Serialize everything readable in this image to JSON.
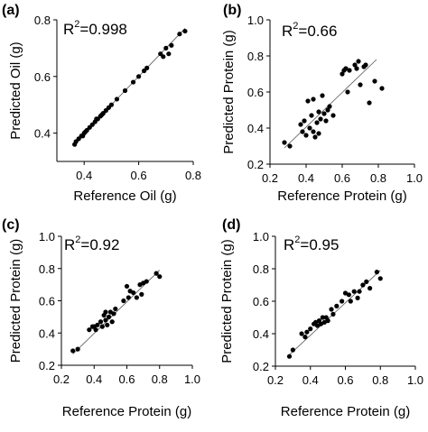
{
  "chart_data": [
    {
      "type": "scatter",
      "panel_label": "(a)",
      "annotation": {
        "base": "R",
        "sup": "2",
        "value": "=0.998"
      },
      "xlabel": "Reference Oil (g)",
      "ylabel": "Predicted Oil (g)",
      "xlim": [
        0.3,
        0.8
      ],
      "ylim": [
        0.3,
        0.8
      ],
      "xticks": [
        0.4,
        0.6,
        0.8
      ],
      "yticks": [
        0.4,
        0.6,
        0.8
      ],
      "xtick_labels": [
        "0.4",
        "0.6",
        "0.8"
      ],
      "ytick_labels": [
        "0.4",
        "0.6",
        "0.8"
      ],
      "fit_line": [
        [
          0.36,
          0.36
        ],
        [
          0.77,
          0.77
        ]
      ],
      "points": [
        [
          0.365,
          0.36
        ],
        [
          0.37,
          0.37
        ],
        [
          0.38,
          0.38
        ],
        [
          0.39,
          0.39
        ],
        [
          0.395,
          0.39
        ],
        [
          0.4,
          0.4
        ],
        [
          0.405,
          0.405
        ],
        [
          0.41,
          0.41
        ],
        [
          0.42,
          0.42
        ],
        [
          0.43,
          0.43
        ],
        [
          0.44,
          0.44
        ],
        [
          0.445,
          0.45
        ],
        [
          0.45,
          0.45
        ],
        [
          0.46,
          0.46
        ],
        [
          0.465,
          0.465
        ],
        [
          0.47,
          0.47
        ],
        [
          0.48,
          0.48
        ],
        [
          0.49,
          0.49
        ],
        [
          0.5,
          0.5
        ],
        [
          0.52,
          0.52
        ],
        [
          0.55,
          0.55
        ],
        [
          0.58,
          0.58
        ],
        [
          0.6,
          0.6
        ],
        [
          0.62,
          0.62
        ],
        [
          0.63,
          0.63
        ],
        [
          0.68,
          0.68
        ],
        [
          0.69,
          0.67
        ],
        [
          0.7,
          0.7
        ],
        [
          0.71,
          0.68
        ],
        [
          0.72,
          0.71
        ],
        [
          0.75,
          0.75
        ],
        [
          0.77,
          0.76
        ]
      ]
    },
    {
      "type": "scatter",
      "panel_label": "(b)",
      "annotation": {
        "base": "R",
        "sup": "2",
        "value": "=0.66"
      },
      "xlabel": "Reference Protein (g)",
      "ylabel": "Predicted Protein (g)",
      "xlim": [
        0.2,
        1.0
      ],
      "ylim": [
        0.2,
        1.0
      ],
      "xticks": [
        0.2,
        0.4,
        0.6,
        0.8,
        1.0
      ],
      "yticks": [
        0.2,
        0.4,
        0.6,
        0.8,
        1.0
      ],
      "xtick_labels": [
        "0.2",
        "0.4",
        "0.6",
        "0.8",
        "1.0"
      ],
      "ytick_labels": [
        "0.2",
        "0.4",
        "0.6",
        "0.8",
        "1.0"
      ],
      "fit_line": [
        [
          0.28,
          0.29
        ],
        [
          0.79,
          0.78
        ]
      ],
      "points": [
        [
          0.28,
          0.32
        ],
        [
          0.31,
          0.3
        ],
        [
          0.37,
          0.42
        ],
        [
          0.38,
          0.38
        ],
        [
          0.39,
          0.44
        ],
        [
          0.4,
          0.36
        ],
        [
          0.41,
          0.55
        ],
        [
          0.42,
          0.4
        ],
        [
          0.43,
          0.47
        ],
        [
          0.44,
          0.38
        ],
        [
          0.44,
          0.56
        ],
        [
          0.45,
          0.35
        ],
        [
          0.46,
          0.43
        ],
        [
          0.47,
          0.37
        ],
        [
          0.47,
          0.49
        ],
        [
          0.48,
          0.45
        ],
        [
          0.49,
          0.58
        ],
        [
          0.5,
          0.48
        ],
        [
          0.51,
          0.44
        ],
        [
          0.52,
          0.5
        ],
        [
          0.53,
          0.52
        ],
        [
          0.55,
          0.47
        ],
        [
          0.6,
          0.7
        ],
        [
          0.61,
          0.72
        ],
        [
          0.62,
          0.73
        ],
        [
          0.63,
          0.6
        ],
        [
          0.64,
          0.72
        ],
        [
          0.67,
          0.75
        ],
        [
          0.68,
          0.73
        ],
        [
          0.69,
          0.77
        ],
        [
          0.7,
          0.64
        ],
        [
          0.72,
          0.74
        ],
        [
          0.73,
          0.75
        ],
        [
          0.75,
          0.54
        ],
        [
          0.78,
          0.66
        ],
        [
          0.82,
          0.62
        ]
      ]
    },
    {
      "type": "scatter",
      "panel_label": "(c)",
      "annotation": {
        "base": "R",
        "sup": "2",
        "value": "=0.92"
      },
      "xlabel": "Reference Protein (g)",
      "ylabel": "Predicted Protein (g)",
      "xlim": [
        0.2,
        1.0
      ],
      "ylim": [
        0.2,
        1.0
      ],
      "xticks": [
        0.2,
        0.4,
        0.6,
        0.8,
        1.0
      ],
      "yticks": [
        0.2,
        0.4,
        0.6,
        0.8,
        1.0
      ],
      "xtick_labels": [
        "0.2",
        "0.4",
        "0.6",
        "0.8",
        "1.0"
      ],
      "ytick_labels": [
        "0.2",
        "0.4",
        "0.6",
        "0.8",
        "1.0"
      ],
      "fit_line": [
        [
          0.27,
          0.27
        ],
        [
          0.8,
          0.79
        ]
      ],
      "points": [
        [
          0.27,
          0.29
        ],
        [
          0.3,
          0.3
        ],
        [
          0.37,
          0.42
        ],
        [
          0.39,
          0.44
        ],
        [
          0.4,
          0.44
        ],
        [
          0.41,
          0.42
        ],
        [
          0.42,
          0.45
        ],
        [
          0.44,
          0.47
        ],
        [
          0.45,
          0.44
        ],
        [
          0.46,
          0.51
        ],
        [
          0.47,
          0.48
        ],
        [
          0.47,
          0.53
        ],
        [
          0.48,
          0.45
        ],
        [
          0.49,
          0.5
        ],
        [
          0.5,
          0.53
        ],
        [
          0.51,
          0.47
        ],
        [
          0.52,
          0.52
        ],
        [
          0.53,
          0.55
        ],
        [
          0.58,
          0.6
        ],
        [
          0.6,
          0.69
        ],
        [
          0.61,
          0.62
        ],
        [
          0.62,
          0.66
        ],
        [
          0.64,
          0.65
        ],
        [
          0.66,
          0.62
        ],
        [
          0.68,
          0.7
        ],
        [
          0.69,
          0.64
        ],
        [
          0.7,
          0.71
        ],
        [
          0.72,
          0.72
        ],
        [
          0.78,
          0.77
        ],
        [
          0.8,
          0.75
        ]
      ]
    },
    {
      "type": "scatter",
      "panel_label": "(d)",
      "annotation": {
        "base": "R",
        "sup": "2",
        "value": "=0.95"
      },
      "xlabel": "Reference Protein (g)",
      "ylabel": "Predicted Protein (g)",
      "xlim": [
        0.2,
        1.0
      ],
      "ylim": [
        0.2,
        1.0
      ],
      "xticks": [
        0.2,
        0.4,
        0.6,
        0.8,
        1.0
      ],
      "yticks": [
        0.2,
        0.4,
        0.6,
        0.8,
        1.0
      ],
      "xtick_labels": [
        "0.2",
        "0.4",
        "0.6",
        "0.8",
        "1.0"
      ],
      "ytick_labels": [
        "0.2",
        "0.4",
        "0.6",
        "0.8",
        "1.0"
      ],
      "fit_line": [
        [
          0.28,
          0.27
        ],
        [
          0.8,
          0.79
        ]
      ],
      "points": [
        [
          0.28,
          0.26
        ],
        [
          0.3,
          0.3
        ],
        [
          0.35,
          0.4
        ],
        [
          0.37,
          0.38
        ],
        [
          0.38,
          0.41
        ],
        [
          0.4,
          0.43
        ],
        [
          0.42,
          0.46
        ],
        [
          0.43,
          0.47
        ],
        [
          0.44,
          0.45
        ],
        [
          0.45,
          0.48
        ],
        [
          0.46,
          0.46
        ],
        [
          0.47,
          0.5
        ],
        [
          0.48,
          0.47
        ],
        [
          0.49,
          0.5
        ],
        [
          0.5,
          0.48
        ],
        [
          0.52,
          0.55
        ],
        [
          0.53,
          0.52
        ],
        [
          0.55,
          0.57
        ],
        [
          0.58,
          0.6
        ],
        [
          0.6,
          0.65
        ],
        [
          0.62,
          0.64
        ],
        [
          0.63,
          0.6
        ],
        [
          0.65,
          0.66
        ],
        [
          0.67,
          0.62
        ],
        [
          0.68,
          0.66
        ],
        [
          0.7,
          0.7
        ],
        [
          0.72,
          0.72
        ],
        [
          0.74,
          0.68
        ],
        [
          0.78,
          0.78
        ],
        [
          0.8,
          0.74
        ]
      ]
    }
  ]
}
